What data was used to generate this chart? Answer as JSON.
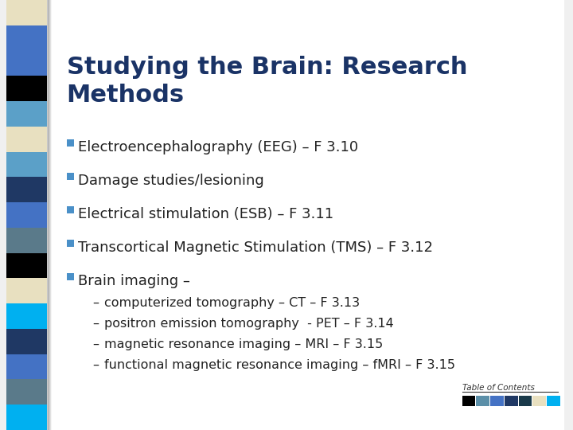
{
  "title": "Studying the Brain: Research\nMethods",
  "title_color": "#1a3366",
  "title_fontsize": 22,
  "title_bold": true,
  "bg_color": "#f0f0f0",
  "slide_bg": "#ffffff",
  "bullet_color": "#4a90c8",
  "bullet_items": [
    "Electroencephalography (EEG) – F 3.10",
    "Damage studies/lesioning",
    "Electrical stimulation (ESB) – F 3.11",
    "Transcortical Magnetic Stimulation (TMS) – F 3.12",
    "Brain imaging –"
  ],
  "sub_items": [
    "computerized tomography – CT – F 3.13",
    "positron emission tomography  - PET – F 3.14",
    "magnetic resonance imaging – MRI – F 3.15",
    "functional magnetic resonance imaging – fMRI – F 3.15"
  ],
  "toc_label": "Table of Contents",
  "toc_colors": [
    "#000000",
    "#5b8fa8",
    "#4472c4",
    "#1f3864",
    "#1a3a4a",
    "#e8e0c0",
    "#00b0f0"
  ],
  "sidebar_colors": [
    "#e8e0c0",
    "#4472c4",
    "#4472c4",
    "#000000",
    "#5ba0c8",
    "#e8e0c0",
    "#5ba0c8",
    "#1f3864",
    "#4472c4",
    "#5a7a8a",
    "#000000",
    "#e8e0c0",
    "#00b0f0",
    "#1f3864",
    "#4472c4",
    "#5a7a8a",
    "#00b0f0"
  ],
  "bullet_fontsize": 13,
  "sub_fontsize": 11.5,
  "font_family": "Arial"
}
